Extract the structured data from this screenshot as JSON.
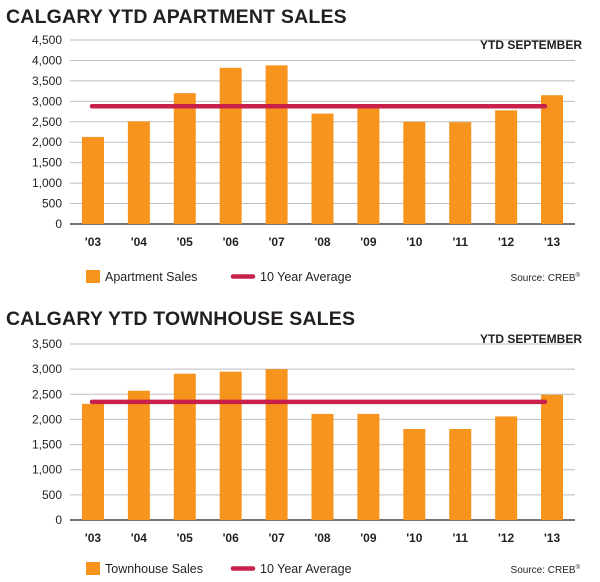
{
  "colors": {
    "bar": "#f7941d",
    "average": "#c8204a",
    "grid": "#bcbec0",
    "axis": "#231f20"
  },
  "chart_data": [
    {
      "type": "bar",
      "title": "CALGARY YTD APARTMENT SALES",
      "period": "YTD SEPTEMBER",
      "categories": [
        "'03",
        "'04",
        "'05",
        "'06",
        "'07",
        "'08",
        "'09",
        "'10",
        "'11",
        "'12",
        "'13"
      ],
      "series": [
        {
          "name": "Apartment Sales",
          "values": [
            2130,
            2510,
            3200,
            3820,
            3880,
            2700,
            2860,
            2500,
            2490,
            2780,
            3150
          ]
        }
      ],
      "average": {
        "name": "10 Year Average",
        "value": 2880
      },
      "ylim": [
        0,
        4500
      ],
      "yticks": [
        0,
        500,
        1000,
        1500,
        2000,
        2500,
        3000,
        3500,
        4000,
        4500
      ],
      "ytick_labels": [
        "0",
        "500",
        "1,000",
        "1,500",
        "2,000",
        "2,500",
        "3,000",
        "3,500",
        "4,000",
        "4,500"
      ],
      "source": "Source: CREB",
      "source_mark": "®",
      "grid": true,
      "legend": "bottom-left"
    },
    {
      "type": "bar",
      "title": "CALGARY YTD TOWNHOUSE SALES",
      "period": "YTD SEPTEMBER",
      "categories": [
        "'03",
        "'04",
        "'05",
        "'06",
        "'07",
        "'08",
        "'09",
        "'10",
        "'11",
        "'12",
        "'13"
      ],
      "series": [
        {
          "name": "Townhouse Sales",
          "values": [
            2310,
            2570,
            2910,
            2950,
            3000,
            2110,
            2110,
            1810,
            1810,
            2060,
            2490
          ]
        }
      ],
      "average": {
        "name": "10 Year Average",
        "value": 2350
      },
      "ylim": [
        0,
        3500
      ],
      "yticks": [
        0,
        500,
        1000,
        1500,
        2000,
        2500,
        3000,
        3500
      ],
      "ytick_labels": [
        "0",
        "500",
        "1,000",
        "1,500",
        "2,000",
        "2,500",
        "3,000",
        "3,500"
      ],
      "source": "Source: CREB",
      "source_mark": "®",
      "grid": true,
      "legend": "bottom-left"
    }
  ]
}
